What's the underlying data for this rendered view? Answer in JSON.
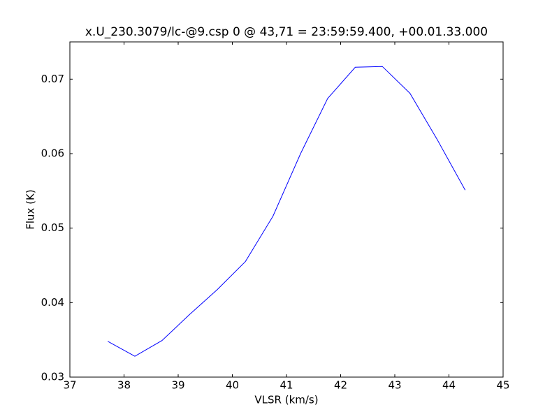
{
  "chart_data": {
    "type": "line",
    "title": "x.U_230.3079/lc-@9.csp 0 @ 43,71 = 23:59:59.400, +00.01.33.000",
    "x_label": "VLSR (km/s)",
    "y_label": "Flux (K)",
    "x": [
      37.7,
      38.2,
      38.7,
      39.21,
      39.73,
      40.24,
      40.75,
      41.26,
      41.76,
      42.27,
      42.77,
      43.28,
      43.79,
      44.3
    ],
    "series": [
      {
        "color": "#0000ff",
        "values": [
          0.0348,
          0.0328,
          0.0349,
          0.0384,
          0.0418,
          0.0455,
          0.0516,
          0.06,
          0.0674,
          0.0716,
          0.0717,
          0.0681,
          0.0618,
          0.0551
        ]
      }
    ],
    "xlim": [
      37,
      45
    ],
    "xticks": [
      37,
      38,
      39,
      40,
      41,
      42,
      43,
      44,
      45
    ],
    "ylim": [
      0.03,
      0.075
    ],
    "yticks": [
      0.03,
      0.04,
      0.05,
      0.06,
      0.07
    ]
  }
}
